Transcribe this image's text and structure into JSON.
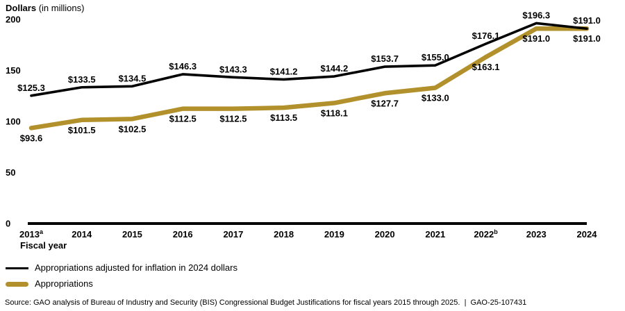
{
  "chart_data": {
    "type": "line",
    "title": "Dollars (in millions)",
    "title_bold": "Dollars",
    "title_rest": " (in millions)",
    "xlabel": "Fiscal year",
    "ylabel": "Dollars (in millions)",
    "ylim": [
      0,
      200
    ],
    "yticks": [
      0,
      50,
      100,
      150,
      200
    ],
    "grid": false,
    "legend_position": "bottom-left",
    "value_prefix": "$",
    "categories": [
      {
        "label": "2013",
        "sup": "a"
      },
      {
        "label": "2014",
        "sup": ""
      },
      {
        "label": "2015",
        "sup": ""
      },
      {
        "label": "2016",
        "sup": ""
      },
      {
        "label": "2017",
        "sup": ""
      },
      {
        "label": "2018",
        "sup": ""
      },
      {
        "label": "2019",
        "sup": ""
      },
      {
        "label": "2020",
        "sup": ""
      },
      {
        "label": "2021",
        "sup": ""
      },
      {
        "label": "2022",
        "sup": "b"
      },
      {
        "label": "2023",
        "sup": ""
      },
      {
        "label": "2024",
        "sup": ""
      }
    ],
    "series": [
      {
        "name": "Appropriations adjusted for inflation in 2024 dollars",
        "color": "#000000",
        "stroke_width": 3.6,
        "label_position": "above",
        "values": [
          125.3,
          133.5,
          134.5,
          146.3,
          143.3,
          141.2,
          144.2,
          153.7,
          155.0,
          176.1,
          196.3,
          191.0
        ]
      },
      {
        "name": "Appropriations",
        "color": "#B2912C",
        "stroke_width": 6.5,
        "label_position": "below",
        "values": [
          93.6,
          101.5,
          102.5,
          112.5,
          112.5,
          113.5,
          118.1,
          127.7,
          133.0,
          163.1,
          191.0,
          191.0
        ]
      }
    ]
  },
  "source_note": "Source: GAO analysis of Bureau of Industry and Security (BIS) Congressional Budget Justifications for fiscal years 2015 through 2025.  |  GAO-25-107431"
}
